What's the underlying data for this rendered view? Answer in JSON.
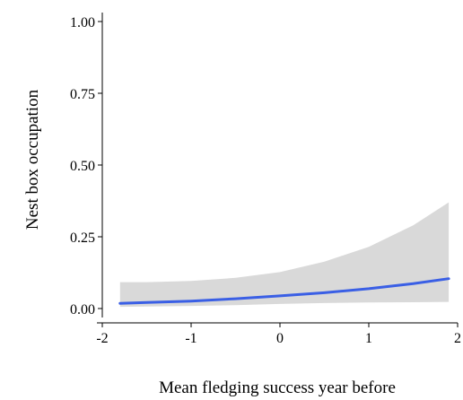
{
  "chart_data": {
    "type": "line",
    "title": "",
    "xlabel": "Mean fledging success year before",
    "ylabel": "Nest box occupation",
    "xlim": [
      -2,
      2
    ],
    "ylim": [
      0,
      1.0
    ],
    "x_ticks": [
      -2,
      -1,
      0,
      1,
      2
    ],
    "x_tick_labels": [
      "-2",
      "-1",
      "0",
      "1",
      "2"
    ],
    "y_ticks": [
      0,
      0.25,
      0.5,
      0.75,
      1.0
    ],
    "y_tick_labels": [
      "0.00",
      "0.25",
      "0.50",
      "0.75",
      "1.00"
    ],
    "grid": false,
    "legend": "none",
    "series": [
      {
        "x": [
          -1.8,
          -1.5,
          -1.0,
          -0.5,
          0.0,
          0.5,
          1.0,
          1.5,
          1.9
        ],
        "y": [
          0.018,
          0.021,
          0.026,
          0.034,
          0.044,
          0.055,
          0.069,
          0.087,
          0.104
        ],
        "lower": [
          0.006,
          0.007,
          0.009,
          0.012,
          0.016,
          0.019,
          0.021,
          0.022,
          0.023
        ],
        "upper": [
          0.092,
          0.092,
          0.096,
          0.107,
          0.127,
          0.163,
          0.215,
          0.29,
          0.37
        ],
        "color": "#3a5fe5",
        "band_color": "#d9d9d9"
      }
    ]
  }
}
